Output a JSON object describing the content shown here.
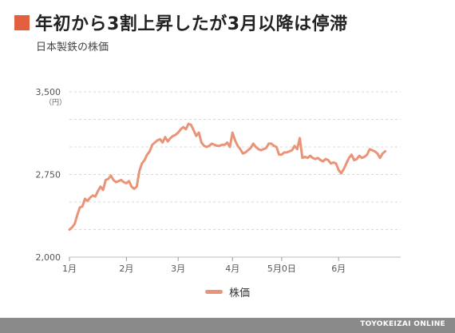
{
  "title": "年初から3割上昇したが3月以降は停滞",
  "subtitle": "日本製鉄の株価",
  "footer": "TOYOKEIZAI ONLINE",
  "colors": {
    "accent": "#e2603d",
    "line": "#e99478",
    "footer": "#8a8a8a"
  },
  "chart_data": {
    "type": "line",
    "title": "年初から3割上昇したが3月以降は停滞",
    "subtitle": "日本製鉄の株価",
    "ylim": [
      2000,
      3500
    ],
    "yticks": [
      2000,
      2750,
      3500
    ],
    "ytick_labels": [
      "2,000",
      "2,750",
      "3,500"
    ],
    "yunit": "（円）",
    "xtick_labels": [
      "1月",
      "2月",
      "3月",
      "4月",
      "5月0日",
      "6月"
    ],
    "xtick_positions": [
      0,
      22,
      42,
      63,
      82,
      104
    ],
    "xlim": [
      0,
      128
    ],
    "grid": true,
    "legend_position": "bottom",
    "series": [
      {
        "name": "株価",
        "values": [
          2250,
          2270,
          2300,
          2380,
          2450,
          2460,
          2530,
          2510,
          2540,
          2560,
          2550,
          2600,
          2640,
          2610,
          2700,
          2710,
          2740,
          2700,
          2680,
          2690,
          2700,
          2680,
          2670,
          2690,
          2640,
          2620,
          2640,
          2780,
          2850,
          2880,
          2930,
          2960,
          3020,
          3040,
          3060,
          3070,
          3040,
          3090,
          3050,
          3080,
          3100,
          3110,
          3130,
          3160,
          3180,
          3160,
          3210,
          3200,
          3150,
          3100,
          3130,
          3040,
          3010,
          3000,
          3010,
          3030,
          3020,
          3010,
          3010,
          3020,
          3020,
          3040,
          3000,
          3130,
          3060,
          3010,
          2980,
          2940,
          2950,
          2970,
          2990,
          3030,
          3000,
          2980,
          2970,
          2980,
          2990,
          3030,
          3030,
          3010,
          3000,
          2930,
          2930,
          2950,
          2950,
          2960,
          2970,
          3010,
          2980,
          3080,
          2900,
          2910,
          2900,
          2920,
          2900,
          2890,
          2900,
          2880,
          2870,
          2890,
          2880,
          2850,
          2860,
          2850,
          2790,
          2760,
          2800,
          2850,
          2900,
          2930,
          2880,
          2890,
          2920,
          2900,
          2910,
          2930,
          2980,
          2970,
          2960,
          2940,
          2900,
          2940,
          2960
        ]
      }
    ]
  }
}
